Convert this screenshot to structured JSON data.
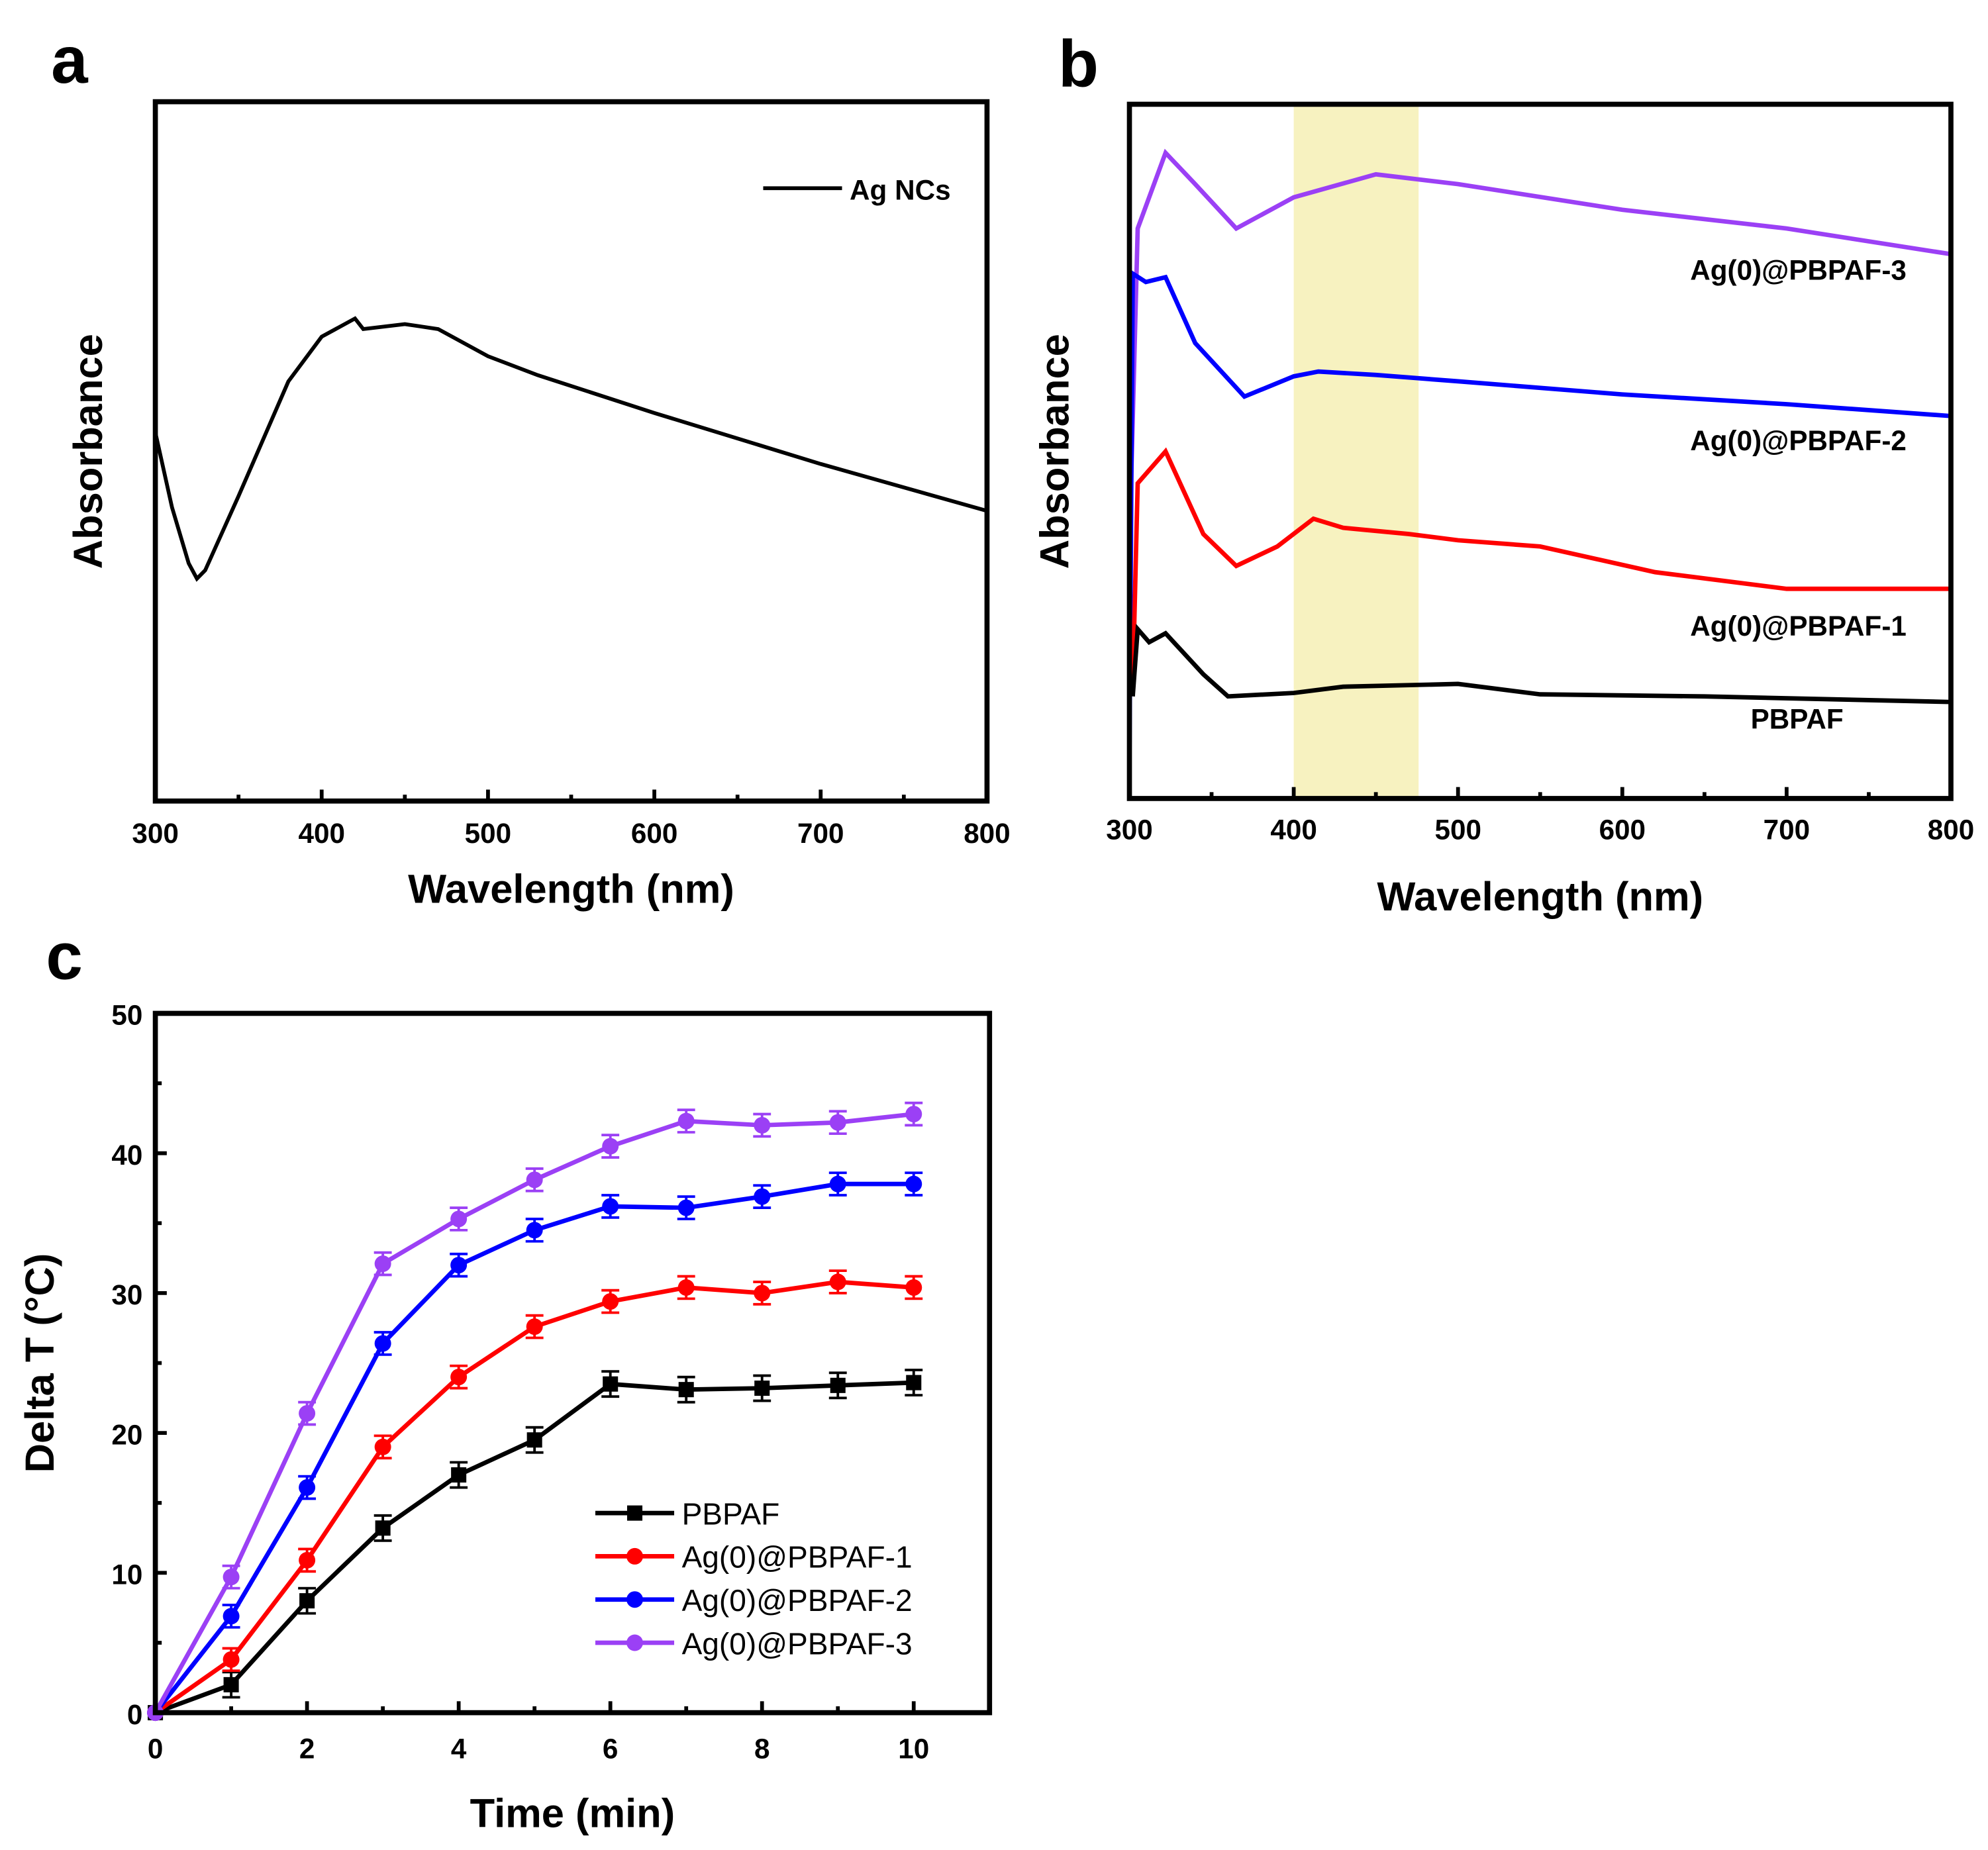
{
  "chart_data": [
    {
      "panel": "a",
      "type": "line",
      "xlabel": "Wavelength (nm)",
      "ylabel": "Absorbance",
      "xlim": [
        300,
        800
      ],
      "ylim": [
        0,
        1
      ],
      "xticks": [
        300,
        400,
        500,
        600,
        700,
        800
      ],
      "legend_position": "top-right",
      "series": [
        {
          "name": "Ag NCs",
          "color": "#000000",
          "x": [
            300,
            310,
            320,
            325,
            330,
            350,
            380,
            400,
            420,
            425,
            450,
            470,
            500,
            530,
            600,
            700,
            800
          ],
          "y": [
            0.527,
            0.42,
            0.34,
            0.318,
            0.33,
            0.436,
            0.6,
            0.664,
            0.69,
            0.675,
            0.682,
            0.675,
            0.636,
            0.609,
            0.555,
            0.482,
            0.415
          ]
        }
      ]
    },
    {
      "panel": "b",
      "type": "line",
      "xlabel": "Wavelength (nm)",
      "ylabel": "Absorbance",
      "xlim": [
        300,
        800
      ],
      "ylim": [
        0,
        1
      ],
      "xticks": [
        300,
        400,
        500,
        600,
        700,
        800
      ],
      "highlight_band": [
        400,
        476
      ],
      "highlight_color": "#f7f2c0",
      "series": [
        {
          "name": "Ag(0)@PBPAF-3",
          "color": "#9b40f5",
          "x": [
            300,
            305,
            322,
            340,
            365,
            400,
            450,
            500,
            600,
            700,
            800
          ],
          "y": [
            0.363,
            0.821,
            0.93,
            0.885,
            0.821,
            0.866,
            0.899,
            0.885,
            0.848,
            0.821,
            0.784
          ]
        },
        {
          "name": "Ag(0)@PBPAF-2",
          "color": "#0000ff",
          "x": [
            300,
            302,
            310,
            322,
            340,
            370,
            400,
            415,
            450,
            500,
            600,
            700,
            800
          ],
          "y": [
            0.05,
            0.756,
            0.744,
            0.751,
            0.656,
            0.579,
            0.608,
            0.615,
            0.61,
            0.601,
            0.582,
            0.568,
            0.551
          ]
        },
        {
          "name": "Ag(0)@PBPAF-1",
          "color": "#ff0000",
          "x": [
            302,
            305,
            322,
            345,
            365,
            390,
            412,
            430,
            470,
            500,
            550,
            620,
            700,
            800
          ],
          "y": [
            0.161,
            0.454,
            0.5,
            0.381,
            0.335,
            0.363,
            0.403,
            0.39,
            0.381,
            0.372,
            0.363,
            0.326,
            0.302,
            0.302
          ]
        },
        {
          "name": "PBPAF",
          "color": "#000000",
          "x": [
            302,
            305,
            312,
            322,
            345,
            360,
            400,
            430,
            500,
            550,
            650,
            800
          ],
          "y": [
            0.147,
            0.244,
            0.225,
            0.238,
            0.179,
            0.147,
            0.152,
            0.161,
            0.165,
            0.15,
            0.147,
            0.139
          ]
        }
      ]
    },
    {
      "panel": "c",
      "type": "line",
      "xlabel": "Time (min)",
      "ylabel": "Delta T (°C)",
      "xlim": [
        0,
        11
      ],
      "ylim": [
        0,
        50
      ],
      "xticks": [
        0,
        2,
        4,
        6,
        8,
        10
      ],
      "yticks": [
        0,
        10,
        20,
        30,
        40,
        50
      ],
      "legend_position": "bottom-right",
      "x": [
        0,
        1,
        2,
        3,
        4,
        5,
        6,
        7,
        8,
        9,
        10
      ],
      "series": [
        {
          "name": "PBPAF",
          "color": "#000000",
          "marker": "square",
          "values": [
            0,
            2,
            8,
            13.2,
            17,
            19.5,
            23.5,
            23.1,
            23.2,
            23.4,
            23.6
          ],
          "error": 0.9
        },
        {
          "name": "Ag(0)@PBPAF-1",
          "color": "#ff0000",
          "marker": "circle",
          "values": [
            0,
            3.8,
            10.9,
            19,
            24,
            27.6,
            29.4,
            30.4,
            30,
            30.8,
            30.4
          ],
          "error": 0.8
        },
        {
          "name": "Ag(0)@PBPAF-2",
          "color": "#0000ff",
          "marker": "circle",
          "values": [
            0,
            6.9,
            16.1,
            26.4,
            32,
            34.5,
            36.2,
            36.1,
            36.9,
            37.8,
            37.8
          ],
          "error": 0.8
        },
        {
          "name": "Ag(0)@PBPAF-3",
          "color": "#9b40f5",
          "marker": "circle",
          "values": [
            0,
            9.7,
            21.4,
            32.1,
            35.3,
            38.1,
            40.5,
            42.3,
            42,
            42.2,
            42.8
          ],
          "error": 0.8
        }
      ]
    }
  ],
  "labels": {
    "a": "a",
    "b": "b",
    "c": "c"
  }
}
